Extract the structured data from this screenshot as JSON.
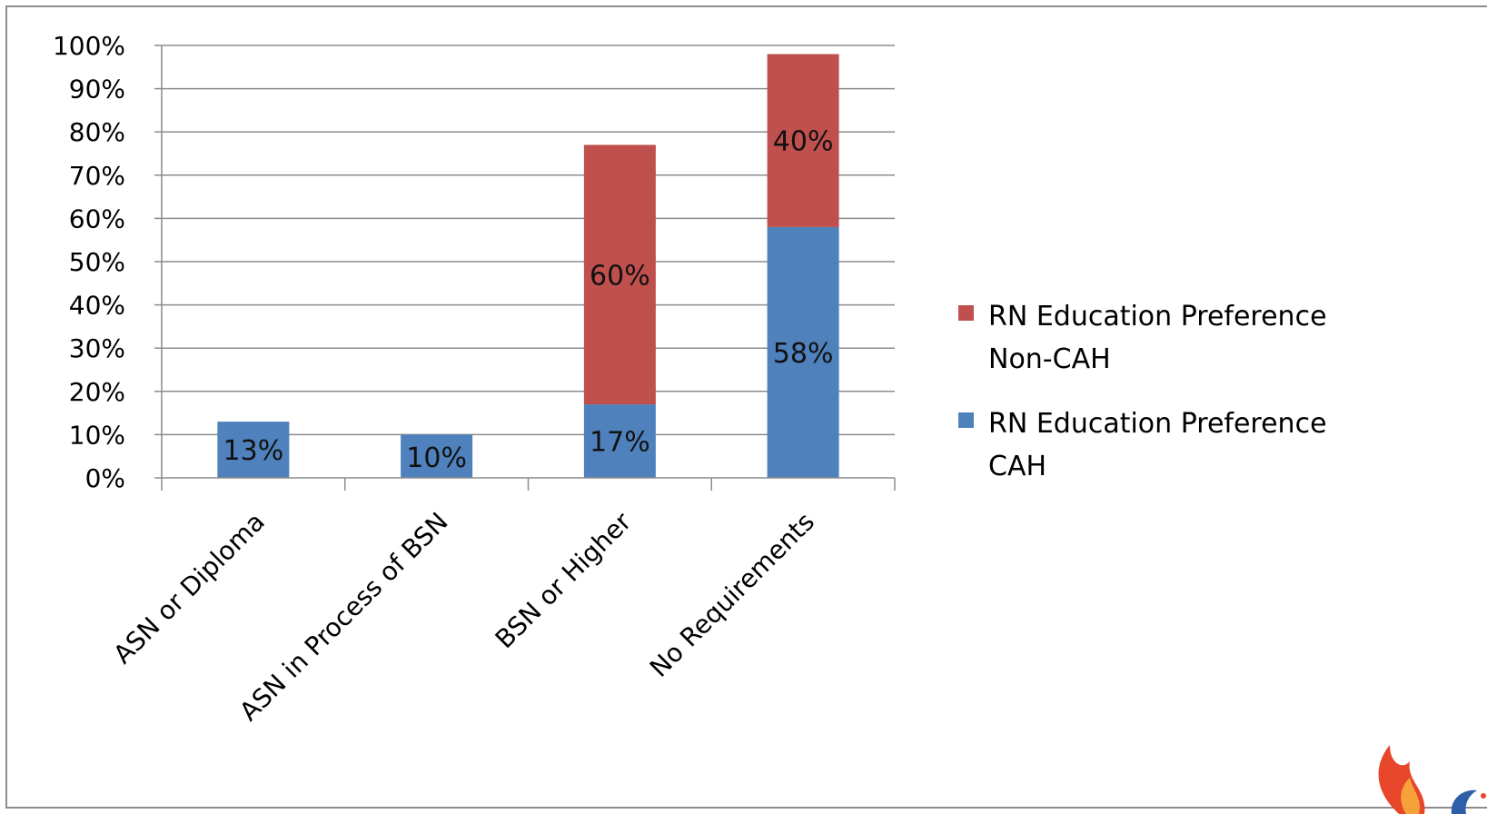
{
  "chart_data": {
    "type": "bar",
    "stacked": true,
    "categories": [
      "ASN or Diploma",
      "ASN in Process of BSN",
      "BSN or Higher",
      "No Requirements"
    ],
    "series": [
      {
        "name": "RN Education Preference CAH",
        "legend_lines": [
          "RN Education Preference",
          "CAH"
        ],
        "values": [
          13,
          10,
          17,
          58
        ],
        "labels": [
          "13%",
          "10%",
          "17%",
          "58%"
        ],
        "color": "#4f81bd"
      },
      {
        "name": "RN Education Preference Non-CAH",
        "legend_lines": [
          "RN Education Preference",
          "Non-CAH"
        ],
        "values": [
          0,
          0,
          60,
          40
        ],
        "labels": [
          "",
          "",
          "60%",
          "40%"
        ],
        "color": "#c0504d"
      }
    ],
    "yticks": [
      "0%",
      "10%",
      "20%",
      "30%",
      "40%",
      "50%",
      "60%",
      "70%",
      "80%",
      "90%",
      "100%"
    ],
    "ylim": [
      0,
      100
    ],
    "grid": true,
    "legend_position": "right",
    "title": "",
    "xlabel": "",
    "ylabel": ""
  },
  "colors": {
    "grid": "#8c8c8c",
    "axis": "#8c8c8c",
    "frame": "#8c8c8c"
  }
}
